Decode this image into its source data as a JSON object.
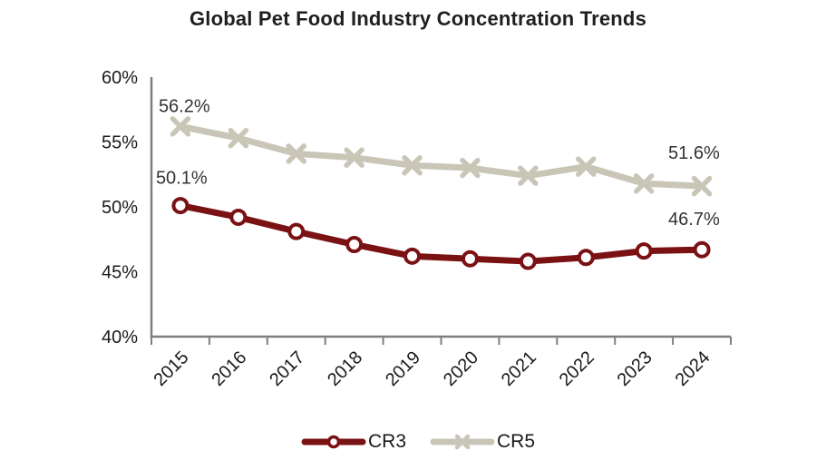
{
  "chart_data": {
    "type": "line",
    "title": "Global Pet Food Industry Concentration Trends",
    "categories": [
      "2015",
      "2016",
      "2017",
      "2018",
      "2019",
      "2020",
      "2021",
      "2022",
      "2023",
      "2024"
    ],
    "series": [
      {
        "name": "CR3",
        "color": "#7A1113",
        "marker": "circle",
        "values": [
          50.1,
          49.2,
          48.1,
          47.1,
          46.2,
          46.0,
          45.8,
          46.1,
          46.6,
          46.7
        ]
      },
      {
        "name": "CR5",
        "color": "#C9C6B8",
        "marker": "x",
        "values": [
          56.2,
          55.3,
          54.1,
          53.8,
          53.2,
          53.0,
          52.4,
          53.1,
          51.8,
          51.6
        ]
      }
    ],
    "ylim": [
      40,
      60
    ],
    "yticks": [
      {
        "value": 60,
        "label": "60%"
      },
      {
        "value": 55,
        "label": "55%"
      },
      {
        "value": 50,
        "label": "50%"
      },
      {
        "value": 45,
        "label": "45%"
      },
      {
        "value": 40,
        "label": "40%"
      }
    ],
    "grid": false,
    "legend_position": "bottom",
    "axis_color": "#7F7F7F",
    "label_color": "#1a1a1a",
    "annotation_color": "#333333",
    "annotations": [
      {
        "text": "56.2%",
        "series": "CR5",
        "point": "first"
      },
      {
        "text": "50.1%",
        "series": "CR3",
        "point": "first"
      },
      {
        "text": "51.6%",
        "series": "CR5",
        "point": "last"
      },
      {
        "text": "46.7%",
        "series": "CR3",
        "point": "last"
      }
    ]
  }
}
